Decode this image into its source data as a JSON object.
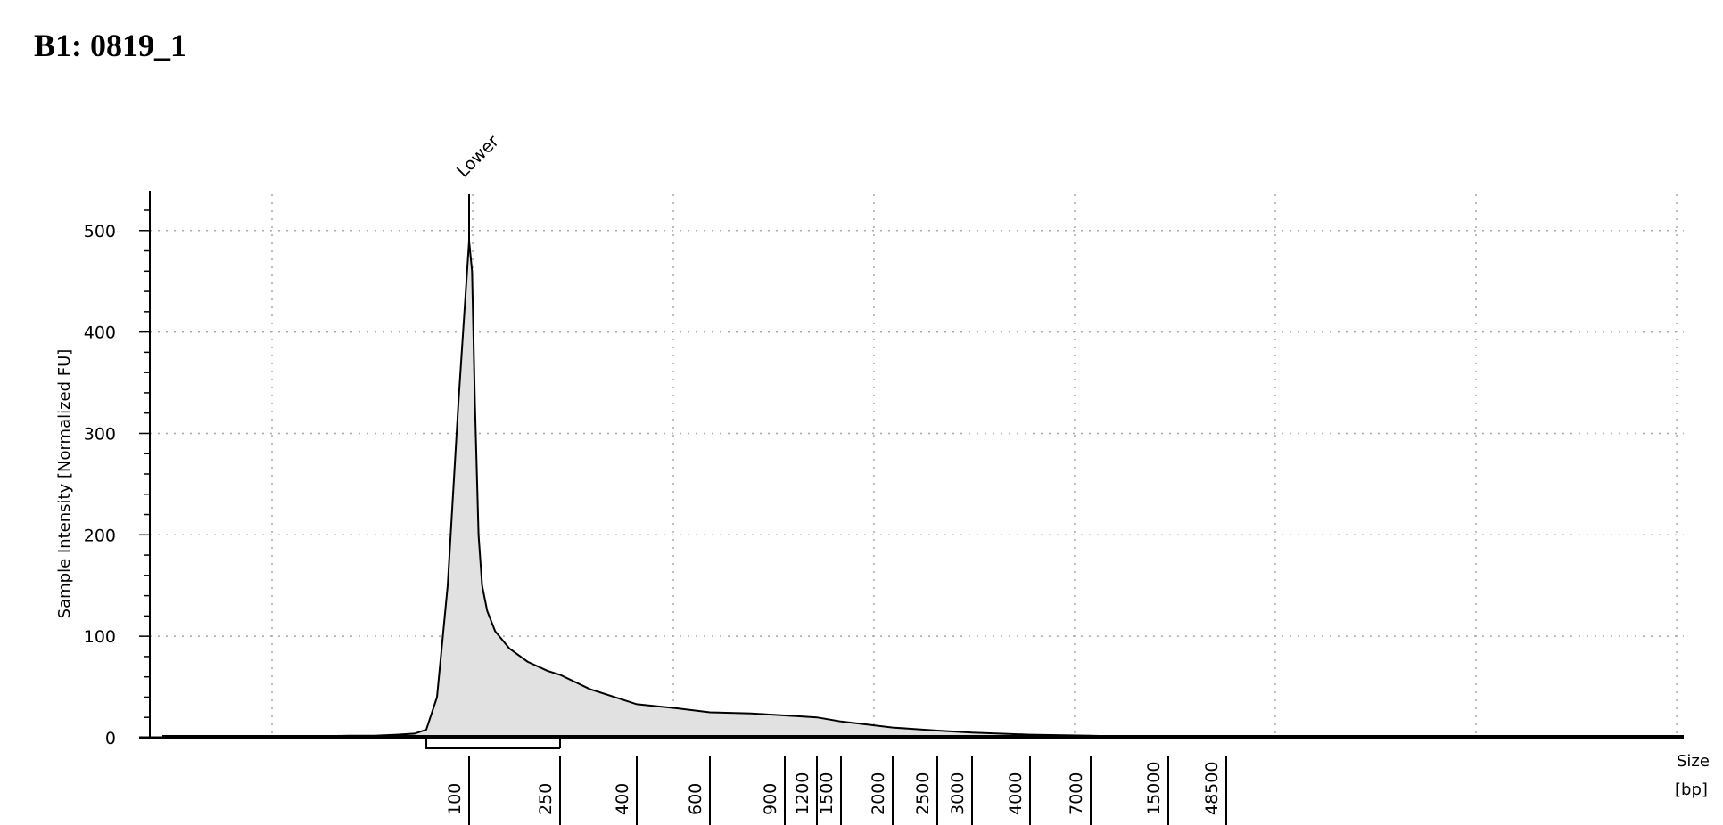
{
  "sample": {
    "title": "B1: 0819_1"
  },
  "chart_data": {
    "type": "area",
    "title": "B1: 0819_1",
    "ylabel": "Sample Intensity [Normalized FU]",
    "xlabel_line1": "Size",
    "xlabel_line2": "[bp]",
    "ylim": [
      0,
      520
    ],
    "yticks": [
      0,
      100,
      200,
      300,
      400,
      500
    ],
    "x_ladder_labels": [
      "100",
      "250",
      "400",
      "600",
      "900",
      "1200",
      "1500",
      "2000",
      "2500",
      "3000",
      "4000",
      "7000",
      "15000",
      "48500"
    ],
    "marker_label": "Lower",
    "marker_size_bp": 100,
    "region_bp": [
      90,
      250
    ],
    "grid": true,
    "colors": {
      "fill": "#e1e1e1",
      "line": "#000000",
      "grid": "#a8a8a8"
    },
    "series": [
      {
        "x": [
          25,
          50,
          70,
          75,
          80,
          85,
          88,
          91,
          94,
          97,
          100,
          103,
          106,
          110,
          114,
          120,
          130,
          150,
          180,
          220,
          250,
          300,
          400,
          500,
          600,
          750,
          900,
          1200,
          1500,
          2000,
          2500,
          3000,
          4000,
          7000,
          15000,
          48500
        ],
        "y": [
          0,
          0,
          2,
          2,
          3,
          4,
          8,
          40,
          150,
          330,
          490,
          460,
          330,
          200,
          150,
          125,
          105,
          88,
          75,
          66,
          62,
          48,
          33,
          29,
          25,
          24,
          22,
          20,
          16,
          10,
          7,
          5,
          3,
          2,
          0,
          0
        ]
      }
    ]
  }
}
